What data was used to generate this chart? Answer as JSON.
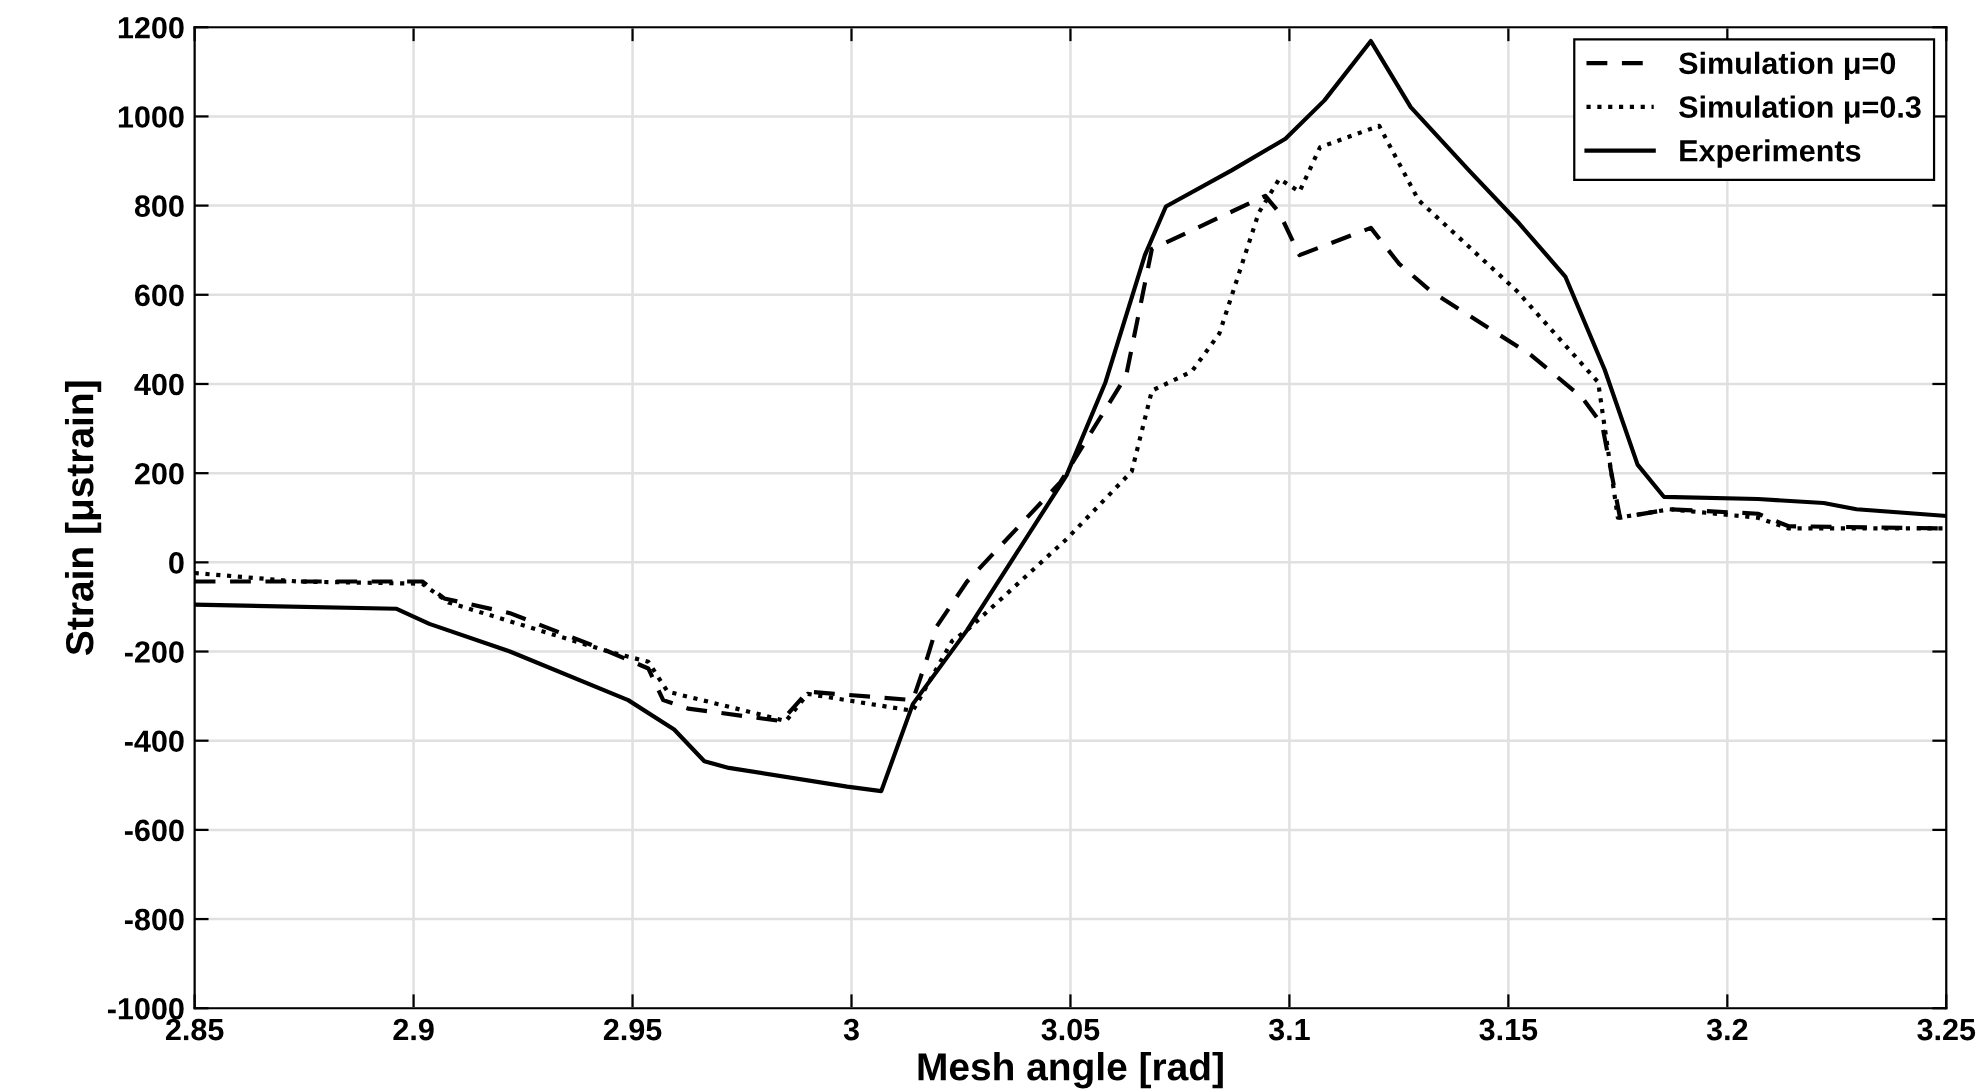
{
  "chart_data": {
    "type": "line",
    "xlabel": "Mesh angle [rad]",
    "ylabel": "Strain [μstrain]",
    "xlim": [
      2.85,
      3.25
    ],
    "xticks": [
      2.85,
      2.9,
      2.95,
      3,
      3.05,
      3.1,
      3.15,
      3.2,
      3.25
    ],
    "ylim": [
      -1000,
      1200
    ],
    "yticks": [
      -1000,
      -800,
      -600,
      -400,
      -200,
      0,
      200,
      400,
      600,
      800,
      1000,
      1200
    ],
    "grid": true,
    "legend": "top right",
    "marker": "none",
    "series": [
      {
        "name": "Simulation μ=0",
        "color": "#000000",
        "line_style": "dashed",
        "x": [
          2.85,
          2.884,
          2.902,
          2.907,
          2.922,
          2.9445,
          2.9536,
          2.957,
          2.9627,
          2.984,
          2.99,
          3.014,
          3.0173,
          3.0195,
          3.0264,
          3.0477,
          3.0627,
          3.0686,
          3.0718,
          3.0945,
          3.0977,
          3.1023,
          3.1186,
          3.125,
          3.1323,
          3.155,
          3.1668,
          3.1714,
          3.1755,
          3.1868,
          3.207,
          3.214,
          3.25
        ],
        "values": [
          -43,
          -43,
          -43,
          -81,
          -114,
          -200,
          -238,
          -309,
          -328,
          -356,
          -290,
          -309,
          -214,
          -143,
          -43,
          180,
          418,
          703,
          717,
          822,
          784,
          689,
          750,
          670,
          608,
          466,
          370,
          309,
          100,
          119,
          109,
          81,
          76
        ]
      },
      {
        "name": "Simulation μ=0.3",
        "color": "#000000",
        "line_style": "dotted",
        "x": [
          2.85,
          2.8736,
          2.902,
          2.908,
          2.9445,
          2.9536,
          2.958,
          2.9795,
          2.985,
          2.99,
          3.014,
          3.023,
          3.0264,
          3.0491,
          3.064,
          3.0686,
          3.0777,
          3.084,
          3.093,
          3.0977,
          3.1023,
          3.107,
          3.1205,
          3.1295,
          3.152,
          3.1705,
          3.175,
          3.1868,
          3.207,
          3.214,
          3.25
        ],
        "values": [
          -24,
          -43,
          -48,
          -90,
          -200,
          -223,
          -290,
          -342,
          -356,
          -295,
          -333,
          -176,
          -152,
          52,
          204,
          385,
          428,
          513,
          784,
          860,
          831,
          931,
          979,
          812,
          608,
          404,
          100,
          119,
          100,
          76,
          76
        ]
      },
      {
        "name": "Experiments",
        "color": "#000000",
        "line_style": "solid",
        "x": [
          2.85,
          2.896,
          2.9036,
          2.922,
          2.949,
          2.9595,
          2.9664,
          2.972,
          2.999,
          3.0068,
          3.014,
          3.0264,
          3.0491,
          3.058,
          3.067,
          3.0718,
          3.0868,
          3.0991,
          3.108,
          3.1186,
          3.1277,
          3.141,
          3.152,
          3.163,
          3.172,
          3.1795,
          3.1855,
          3.207,
          3.222,
          3.2295,
          3.25
        ],
        "values": [
          -95,
          -104,
          -138,
          -200,
          -309,
          -375,
          -446,
          -461,
          -503,
          -513,
          -318,
          -152,
          195,
          404,
          689,
          798,
          879,
          950,
          1036,
          1169,
          1021,
          879,
          765,
          641,
          432,
          219,
          147,
          142,
          133,
          119,
          104
        ]
      }
    ]
  }
}
